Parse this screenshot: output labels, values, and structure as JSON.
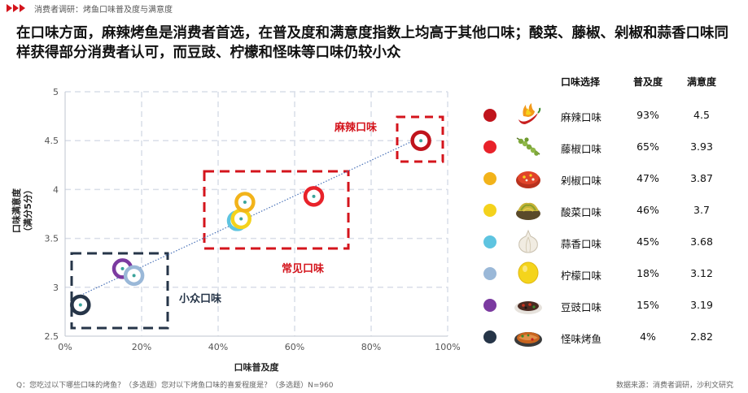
{
  "header": {
    "breadcrumb": "消费者调研：烤鱼口味普及度与满意度"
  },
  "headline": "在口味方面，麻辣烤鱼是消费者首选，在普及度和满意度指数上均高于其他口味；酸菜、藤椒、剁椒和蒜香口味同样获得部分消费者认可，而豆豉、柠檬和怪味等口味仍较小众",
  "chart_data": {
    "type": "scatter",
    "xlabel": "口味普及度",
    "ylabel": "口味满意度（满分5分）",
    "ylabel_main": "口味满意度",
    "ylabel_sub": "（满分5分）",
    "xlim": [
      0,
      100
    ],
    "ylim": [
      2.5,
      5
    ],
    "xticks": [
      "0%",
      "20%",
      "40%",
      "60%",
      "80%",
      "100%"
    ],
    "yticks": [
      "2.5",
      "3",
      "3.5",
      "4",
      "4.5",
      "5"
    ],
    "grid": true,
    "trendline": true,
    "points": [
      {
        "name": "麻辣口味",
        "x": 93,
        "y": 4.5,
        "color": "#c0141c"
      },
      {
        "name": "藤椒口味",
        "x": 65,
        "y": 3.93,
        "color": "#e8222a"
      },
      {
        "name": "剁椒口味",
        "x": 47,
        "y": 3.87,
        "color": "#f2b31a"
      },
      {
        "name": "酸菜口味",
        "x": 46,
        "y": 3.7,
        "color": "#f4d21c"
      },
      {
        "name": "蒜香口味",
        "x": 45,
        "y": 3.68,
        "color": "#5ec4e0"
      },
      {
        "name": "柠檬口味",
        "x": 18,
        "y": 3.12,
        "color": "#9ab8d8"
      },
      {
        "name": "豆豉口味",
        "x": 15,
        "y": 3.19,
        "color": "#7b3aa0"
      },
      {
        "name": "怪味烤鱼",
        "x": 4,
        "y": 2.82,
        "color": "#263548"
      }
    ],
    "zones": [
      {
        "label": "麻辣口味",
        "color": "#d4141c"
      },
      {
        "label": "常见口味",
        "color": "#d4141c"
      },
      {
        "label": "小众口味",
        "color": "#263548"
      }
    ]
  },
  "legend": {
    "headers": {
      "name": "口味选择",
      "pct": "普及度",
      "sat": "满意度"
    },
    "rows": [
      {
        "name": "麻辣口味",
        "pct": "93%",
        "sat": "4.5",
        "color": "#c0141c",
        "icon": "chili-fire-icon"
      },
      {
        "name": "藤椒口味",
        "pct": "65%",
        "sat": "3.93",
        "color": "#e8222a",
        "icon": "green-peppercorn-icon"
      },
      {
        "name": "剁椒口味",
        "pct": "47%",
        "sat": "3.87",
        "color": "#f2b31a",
        "icon": "chopped-chili-bowl-icon"
      },
      {
        "name": "酸菜口味",
        "pct": "46%",
        "sat": "3.7",
        "color": "#f4d21c",
        "icon": "pickled-cabbage-bowl-icon"
      },
      {
        "name": "蒜香口味",
        "pct": "45%",
        "sat": "3.68",
        "color": "#5ec4e0",
        "icon": "garlic-icon"
      },
      {
        "name": "柠檬口味",
        "pct": "18%",
        "sat": "3.12",
        "color": "#9ab8d8",
        "icon": "lemon-icon"
      },
      {
        "name": "豆豉口味",
        "pct": "15%",
        "sat": "3.19",
        "color": "#7b3aa0",
        "icon": "black-bean-plate-icon"
      },
      {
        "name": "怪味烤鱼",
        "pct": "4%",
        "sat": "2.82",
        "color": "#263548",
        "icon": "grilled-fish-plate-icon"
      }
    ]
  },
  "footer": {
    "question": "Q：您吃过以下哪些口味的烤鱼？（多选题）您对以下烤鱼口味的喜爱程度是？（多选题）N=960",
    "source": "数据来源：消费者调研，沙利文研究"
  }
}
